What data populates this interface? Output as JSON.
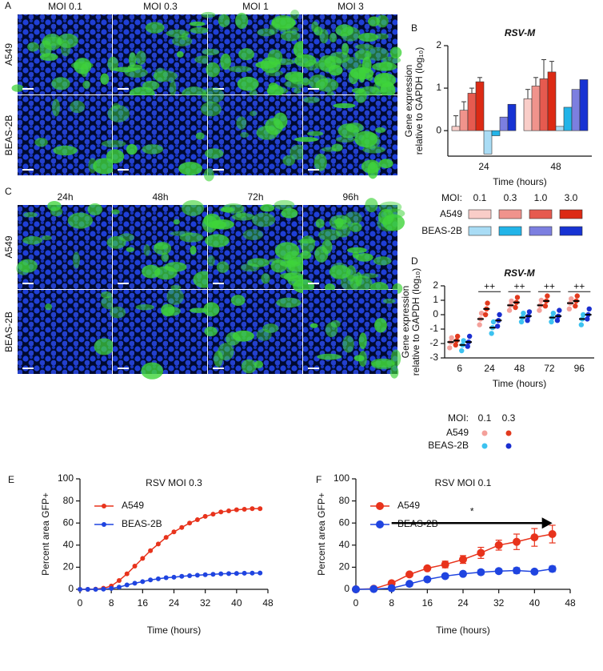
{
  "figure": {
    "panel_a": {
      "letter": "A",
      "columns": [
        "MOI 0.1",
        "MOI 0.3",
        "MOI 1",
        "MOI 3"
      ],
      "rows": [
        "A549",
        "BEAS-2B"
      ]
    },
    "panel_c": {
      "letter": "C",
      "columns": [
        "24h",
        "48h",
        "72h",
        "96h"
      ],
      "rows": [
        "A549",
        "BEAS-2B"
      ]
    }
  },
  "chart_data": [
    {
      "panel": "B",
      "type": "bar",
      "title": "RSV-M",
      "y_label": [
        "Gene expression",
        "relative to GAPDH (log₁₀)"
      ],
      "x_label": "Time (hours)",
      "categories": [
        "24",
        "48"
      ],
      "series": [
        {
          "color": "#f9cdc8",
          "values": [
            0.1,
            0.75
          ],
          "errors": [
            0.25,
            0.22
          ]
        },
        {
          "color": "#f0938c",
          "values": [
            0.48,
            1.05
          ],
          "errors": [
            0.2,
            0.2
          ]
        },
        {
          "color": "#e65a4f",
          "values": [
            0.88,
            1.22
          ],
          "errors": [
            0.12,
            0.45
          ]
        },
        {
          "color": "#dc2a14",
          "values": [
            1.15,
            1.38
          ],
          "errors": [
            0.1,
            0.25
          ]
        },
        {
          "color": "#a9dcf5",
          "values": [
            -0.55,
            0.1
          ]
        },
        {
          "color": "#22b4e8",
          "values": [
            -0.12,
            0.55
          ]
        },
        {
          "color": "#7c7fe0",
          "values": [
            0.32,
            0.97
          ]
        },
        {
          "color": "#1733d3",
          "values": [
            0.62,
            1.2
          ]
        }
      ],
      "legend": {
        "label": "MOI:",
        "mois": [
          "0.1",
          "0.3",
          "1.0",
          "3.0"
        ],
        "groups": [
          "A549",
          "BEAS-2B"
        ]
      },
      "ylim": [
        -0.6,
        2
      ],
      "yticks": [
        0,
        1,
        2
      ]
    },
    {
      "panel": "D",
      "type": "dot",
      "title": "RSV-M",
      "y_label": [
        "Gene expression",
        "relative to GAPDH (log₁₀)"
      ],
      "x_label": "Time (hours)",
      "categories": [
        "6",
        "24",
        "48",
        "72",
        "96"
      ],
      "significance": [
        null,
        "++",
        "++",
        "++",
        "++"
      ],
      "series": [
        {
          "color": "#f4a09a",
          "points": [
            [
              -2.3,
              -1.9,
              -1.6
            ],
            [
              -0.7,
              -0.3,
              0.1
            ],
            [
              0.3,
              0.65,
              0.95
            ],
            [
              0.3,
              0.65,
              1.0
            ],
            [
              0.4,
              0.8,
              1.1
            ]
          ],
          "means": [
            -1.9,
            -0.3,
            0.65,
            0.65,
            0.8
          ]
        },
        {
          "color": "#e23a1e",
          "points": [
            [
              -2.1,
              -1.8,
              -1.5
            ],
            [
              0.0,
              0.4,
              0.8
            ],
            [
              0.5,
              0.85,
              1.2
            ],
            [
              0.6,
              0.95,
              1.3
            ],
            [
              0.6,
              0.95,
              1.3
            ]
          ],
          "means": [
            -1.8,
            0.4,
            0.85,
            0.95,
            0.95
          ]
        },
        {
          "color": "#3cc2f0",
          "points": [
            [
              -2.5,
              -2.1,
              -1.8
            ],
            [
              -1.3,
              -0.9,
              -0.5
            ],
            [
              -0.5,
              -0.2,
              0.1
            ],
            [
              -0.5,
              -0.2,
              0.1
            ],
            [
              -0.7,
              -0.3,
              0.0
            ]
          ],
          "means": [
            -2.1,
            -0.9,
            -0.2,
            -0.2,
            -0.3
          ]
        },
        {
          "color": "#1a2fd0",
          "points": [
            [
              -2.2,
              -1.9,
              -1.5
            ],
            [
              -0.8,
              -0.4,
              0.0
            ],
            [
              -0.4,
              -0.1,
              0.2
            ],
            [
              -0.4,
              -0.1,
              0.3
            ],
            [
              -0.3,
              0.0,
              0.4
            ]
          ],
          "means": [
            -1.9,
            -0.4,
            -0.1,
            -0.1,
            0.0
          ]
        }
      ],
      "legend": {
        "label": "MOI:",
        "mois": [
          "0.1",
          "0.3"
        ],
        "groups": [
          "A549",
          "BEAS-2B"
        ]
      },
      "ylim": [
        -3,
        2
      ],
      "yticks": [
        -3,
        -2,
        -1,
        0,
        1,
        2
      ]
    },
    {
      "panel": "E",
      "type": "line",
      "title": "RSV MOI 0.3",
      "y_label": "Percent area GFP+",
      "x_label": "Time (hours)",
      "x": [
        0,
        2,
        4,
        6,
        8,
        10,
        12,
        14,
        16,
        18,
        20,
        22,
        24,
        26,
        28,
        30,
        32,
        34,
        36,
        38,
        40,
        42,
        44,
        46
      ],
      "series": [
        {
          "name": "A549",
          "color": "#e8331c",
          "values": [
            0,
            0,
            0.2,
            1,
            3,
            8,
            14,
            21,
            28,
            35,
            41,
            47,
            52,
            56,
            60,
            63,
            66,
            68,
            70,
            71,
            72,
            72.5,
            73,
            73
          ]
        },
        {
          "name": "BEAS-2B",
          "color": "#1f44e0",
          "values": [
            0,
            0,
            0,
            0.2,
            0.8,
            2,
            4,
            5.5,
            7,
            8.5,
            9.5,
            10.5,
            11,
            11.8,
            12.3,
            12.8,
            13.2,
            13.6,
            14,
            14.2,
            14.4,
            14.6,
            14.7,
            14.8
          ]
        }
      ],
      "xlim": [
        0,
        48
      ],
      "xticks": [
        0,
        8,
        16,
        24,
        32,
        40,
        48
      ],
      "ylim": [
        0,
        100
      ],
      "yticks": [
        0,
        20,
        40,
        60,
        80,
        100
      ]
    },
    {
      "panel": "F",
      "type": "line",
      "title": "RSV MOI 0.1",
      "y_label": "Percent area GFP+",
      "x_label": "Time (hours)",
      "x": [
        0,
        4,
        8,
        12,
        16,
        20,
        24,
        28,
        32,
        36,
        40,
        44
      ],
      "series": [
        {
          "name": "A549",
          "color": "#e8331c",
          "values": [
            0,
            0.5,
            5.5,
            13.5,
            19,
            22.5,
            27,
            33,
            40,
            43,
            47,
            50
          ],
          "errors": [
            0,
            0,
            1,
            1.5,
            1.5,
            3,
            3.5,
            5,
            4.5,
            7,
            8,
            8
          ]
        },
        {
          "name": "BEAS-2B",
          "color": "#1f44e0",
          "values": [
            0,
            0.3,
            1,
            5,
            9,
            12,
            14,
            15.5,
            16.5,
            17,
            16,
            18.5
          ],
          "errors": [
            0,
            0,
            0.5,
            1,
            1,
            1,
            1,
            2,
            2,
            2.5,
            1.5,
            2.5
          ]
        }
      ],
      "annotation": {
        "text": "*",
        "x0": 8,
        "x1": 44,
        "y": 60
      },
      "xlim": [
        0,
        48
      ],
      "xticks": [
        0,
        8,
        16,
        24,
        32,
        40,
        48
      ],
      "ylim": [
        0,
        100
      ],
      "yticks": [
        0,
        20,
        40,
        60,
        80,
        100
      ]
    }
  ]
}
